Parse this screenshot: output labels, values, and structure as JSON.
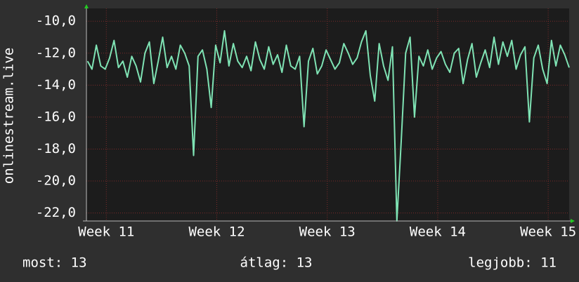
{
  "chart_data": {
    "type": "line",
    "y_label": "onlinestream.live",
    "color": "#7fe3b4",
    "grid": true,
    "ylim": [
      -22.5,
      -9.2
    ],
    "yticks": [
      {
        "value": -10,
        "label": "-10,0"
      },
      {
        "value": -12,
        "label": "-12,0"
      },
      {
        "value": -14,
        "label": "-14,0"
      },
      {
        "value": -16,
        "label": "-16,0"
      },
      {
        "value": -18,
        "label": "-18,0"
      },
      {
        "value": -20,
        "label": "-20,0"
      },
      {
        "value": -22,
        "label": "-22,0"
      }
    ],
    "xlim": [
      10.82,
      15.19
    ],
    "xticks": [
      {
        "value": 11,
        "label": "Week 11"
      },
      {
        "value": 12,
        "label": "Week 12"
      },
      {
        "value": 13,
        "label": "Week 13"
      },
      {
        "value": 14,
        "label": "Week 14"
      },
      {
        "value": 15,
        "label": "Week 15"
      }
    ],
    "x": [
      10.83,
      10.87,
      10.91,
      10.95,
      10.99,
      11.03,
      11.07,
      11.11,
      11.15,
      11.19,
      11.23,
      11.27,
      11.31,
      11.35,
      11.39,
      11.43,
      11.47,
      11.51,
      11.55,
      11.59,
      11.63,
      11.67,
      11.71,
      11.75,
      11.79,
      11.83,
      11.87,
      11.91,
      11.95,
      11.99,
      12.03,
      12.07,
      12.11,
      12.15,
      12.19,
      12.23,
      12.27,
      12.31,
      12.35,
      12.39,
      12.43,
      12.47,
      12.51,
      12.55,
      12.59,
      12.63,
      12.67,
      12.71,
      12.75,
      12.79,
      12.83,
      12.87,
      12.91,
      12.95,
      12.99,
      13.03,
      13.07,
      13.11,
      13.15,
      13.19,
      13.23,
      13.27,
      13.31,
      13.35,
      13.39,
      13.43,
      13.47,
      13.51,
      13.55,
      13.59,
      13.63,
      13.67,
      13.71,
      13.75,
      13.79,
      13.83,
      13.87,
      13.91,
      13.95,
      13.99,
      14.03,
      14.07,
      14.11,
      14.15,
      14.19,
      14.23,
      14.27,
      14.31,
      14.35,
      14.39,
      14.43,
      14.47,
      14.51,
      14.55,
      14.59,
      14.63,
      14.67,
      14.71,
      14.75,
      14.79,
      14.83,
      14.87,
      14.91,
      14.95,
      14.99,
      15.03,
      15.07,
      15.11,
      15.15,
      15.19
    ],
    "values": [
      -12.5,
      -13.0,
      -11.5,
      -12.8,
      -13.0,
      -12.3,
      -11.2,
      -12.9,
      -12.5,
      -13.5,
      -12.2,
      -12.8,
      -13.8,
      -12.0,
      -11.3,
      -13.9,
      -12.5,
      -11.0,
      -12.9,
      -12.2,
      -13.0,
      -11.5,
      -12.0,
      -12.8,
      -18.4,
      -12.2,
      -11.8,
      -13.0,
      -15.4,
      -11.5,
      -12.6,
      -10.6,
      -12.8,
      -11.4,
      -12.5,
      -12.9,
      -12.2,
      -13.1,
      -11.3,
      -12.4,
      -13.0,
      -11.6,
      -12.7,
      -12.1,
      -13.2,
      -11.5,
      -12.8,
      -13.0,
      -12.2,
      -16.6,
      -12.5,
      -11.7,
      -13.3,
      -12.8,
      -11.8,
      -12.4,
      -13.0,
      -12.6,
      -11.4,
      -12.0,
      -12.7,
      -12.3,
      -11.3,
      -10.6,
      -13.4,
      -15.0,
      -11.4,
      -12.8,
      -13.7,
      -11.6,
      -22.5,
      -17.5,
      -12.0,
      -11.0,
      -16.0,
      -12.2,
      -12.8,
      -11.8,
      -13.0,
      -12.3,
      -11.9,
      -12.7,
      -13.2,
      -12.0,
      -11.7,
      -13.9,
      -12.4,
      -11.4,
      -13.5,
      -12.6,
      -11.8,
      -12.9,
      -11.0,
      -12.7,
      -11.3,
      -12.2,
      -11.2,
      -13.0,
      -12.1,
      -11.6,
      -16.3,
      -12.3,
      -11.5,
      -13.0,
      -13.9,
      -11.2,
      -12.8,
      -11.5,
      -12.1,
      -12.9
    ],
    "footer": [
      "most: 13",
      "átlag: 13",
      "legjobb: 11"
    ]
  }
}
